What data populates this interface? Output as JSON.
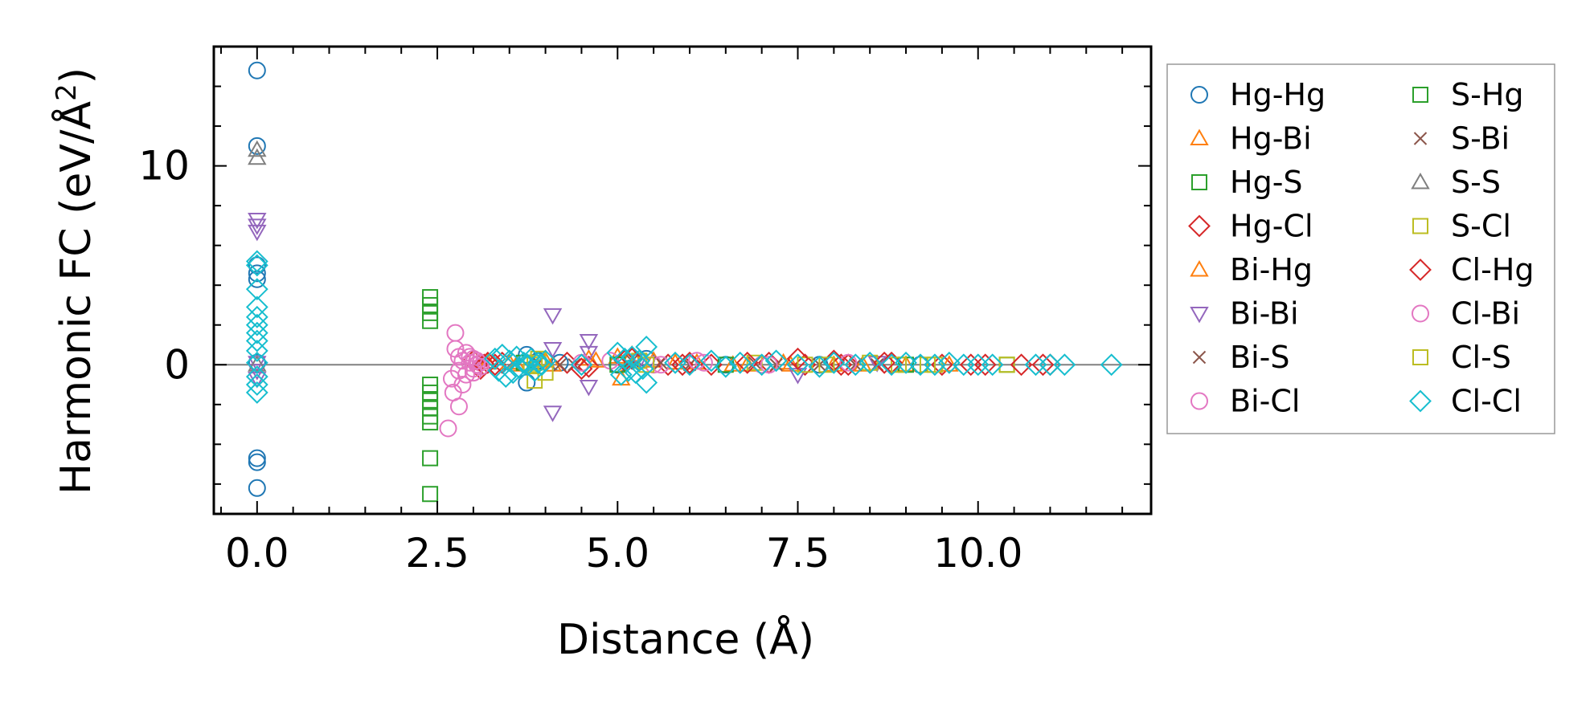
{
  "chart_data": {
    "type": "scatter",
    "title": "",
    "xlabel": "Distance (Å)",
    "ylabel_prefix": "Harmonic FC (eV/Å",
    "ylabel_sup": "2",
    "ylabel_suffix": ")",
    "xlim": [
      -0.6,
      12.4
    ],
    "ylim": [
      -7.5,
      16.0
    ],
    "xticks": [
      0.0,
      2.5,
      5.0,
      7.5,
      10.0
    ],
    "xtick_labels": [
      "0.0",
      "2.5",
      "5.0",
      "7.5",
      "10.0"
    ],
    "yticks": [
      0,
      10
    ],
    "ytick_labels": [
      "0",
      "10"
    ],
    "reference_line": 0,
    "legend_position": "right-outside",
    "series": [
      {
        "name": "Hg-Hg",
        "color": "#1f77b4",
        "marker": "circle",
        "x": [
          0.0,
          0.0,
          0.0,
          0.0,
          0.0,
          0.0,
          0.0,
          0.0,
          0.0,
          3.74,
          3.74,
          3.9,
          4.2,
          5.0,
          5.4,
          6.5,
          7.8,
          9.2
        ],
        "y": [
          14.8,
          11.0,
          4.6,
          4.3,
          5.0,
          -4.7,
          -4.9,
          -6.2,
          0.1,
          0.5,
          -0.9,
          0.2,
          0.1,
          0.0,
          0.3,
          0.0,
          0.0,
          0.0
        ]
      },
      {
        "name": "Hg-Bi",
        "color": "#ff7f0e",
        "marker": "triangle-up",
        "x": [
          3.2,
          3.6,
          4.0,
          4.6,
          5.0,
          5.05,
          5.5,
          6.1,
          6.8,
          7.4,
          8.0,
          9.0
        ],
        "y": [
          0.1,
          0.0,
          0.2,
          0.3,
          0.4,
          -0.7,
          0.2,
          0.1,
          0.0,
          0.0,
          0.0,
          0.0
        ]
      },
      {
        "name": "Hg-S",
        "color": "#2ca02c",
        "marker": "square",
        "x": [
          2.4,
          2.4,
          2.4,
          2.4,
          2.4,
          2.4,
          2.4,
          2.4,
          2.4,
          2.4,
          2.4,
          2.4
        ],
        "y": [
          3.4,
          3.0,
          2.6,
          2.2,
          -1.0,
          -1.4,
          -1.8,
          -2.2,
          -2.6,
          -2.9,
          -4.7,
          -6.5
        ]
      },
      {
        "name": "Hg-Cl",
        "color": "#d62728",
        "marker": "diamond",
        "x": [
          3.0,
          3.1,
          3.2,
          3.3,
          4.3,
          4.6,
          5.1,
          5.7,
          6.0,
          6.3,
          7.1,
          7.6,
          8.0,
          8.2,
          8.8,
          9.5,
          10.1,
          10.9
        ],
        "y": [
          0.2,
          -0.2,
          0.1,
          0.0,
          0.1,
          -0.1,
          0.2,
          0.0,
          0.1,
          0.0,
          0.1,
          0.0,
          0.2,
          0.0,
          0.1,
          0.0,
          0.0,
          0.0
        ]
      },
      {
        "name": "Bi-Hg",
        "color": "#ff7f0e",
        "marker": "triangle-up",
        "x": [
          3.5,
          4.1,
          4.7,
          5.2,
          5.8,
          6.6,
          7.3,
          8.4,
          9.6
        ],
        "y": [
          0.1,
          0.0,
          0.2,
          0.5,
          0.1,
          0.0,
          0.1,
          0.0,
          0.0
        ]
      },
      {
        "name": "Bi-Bi",
        "color": "#9467bd",
        "marker": "triangle-down",
        "x": [
          0.0,
          0.0,
          0.0,
          0.0,
          0.0,
          0.0,
          4.1,
          4.1,
          4.1,
          4.6,
          4.6,
          4.6,
          5.3,
          7.5,
          8.6
        ],
        "y": [
          7.3,
          7.0,
          6.7,
          0.1,
          -0.3,
          -0.7,
          2.5,
          0.8,
          -2.4,
          1.2,
          0.6,
          -1.1,
          0.2,
          -0.5,
          0.1
        ]
      },
      {
        "name": "Bi-S",
        "color": "#8c564b",
        "marker": "x",
        "x": [
          3.9,
          4.4,
          5.2,
          6.0,
          6.9,
          7.8,
          8.6
        ],
        "y": [
          0.1,
          0.0,
          0.2,
          0.0,
          0.1,
          0.0,
          0.0
        ]
      },
      {
        "name": "Bi-Cl",
        "color": "#e377c2",
        "marker": "circle",
        "x": [
          2.65,
          2.7,
          2.72,
          2.75,
          2.75,
          2.8,
          2.8,
          2.8,
          2.85,
          2.85,
          2.9,
          2.9,
          2.95,
          3.0,
          3.0,
          3.05,
          3.1,
          4.9,
          5.5,
          6.2,
          7.0
        ],
        "y": [
          -3.2,
          -0.7,
          -1.4,
          1.6,
          0.8,
          0.4,
          -0.3,
          -2.1,
          0.2,
          -1.0,
          0.6,
          -0.5,
          0.1,
          0.3,
          -0.2,
          0.0,
          0.1,
          0.2,
          0.0,
          0.1,
          0.0
        ]
      },
      {
        "name": "S-Hg",
        "color": "#2ca02c",
        "marker": "square",
        "x": [
          3.7,
          5.0,
          6.5,
          9.0,
          10.4
        ],
        "y": [
          0.1,
          0.0,
          0.0,
          0.0,
          0.0
        ]
      },
      {
        "name": "S-Bi",
        "color": "#8c564b",
        "marker": "x",
        "x": [
          4.2,
          5.6,
          7.2,
          8.3
        ],
        "y": [
          0.0,
          0.1,
          0.0,
          0.0
        ]
      },
      {
        "name": "S-S",
        "color": "#7f7f7f",
        "marker": "triangle-up",
        "x": [
          0.0,
          0.0,
          0.0
        ],
        "y": [
          10.8,
          10.4,
          0.0
        ]
      },
      {
        "name": "S-Cl",
        "color": "#bcbd22",
        "marker": "square",
        "x": [
          3.8,
          3.85,
          3.9,
          4.0,
          5.3,
          6.9,
          7.6,
          8.5,
          8.9,
          9.3,
          10.4
        ],
        "y": [
          0.0,
          -0.8,
          0.3,
          -0.4,
          0.2,
          0.1,
          0.0,
          0.1,
          0.0,
          0.0,
          0.0
        ]
      },
      {
        "name": "Cl-Hg",
        "color": "#d62728",
        "marker": "diamond",
        "x": [
          3.15,
          3.4,
          4.5,
          5.2,
          5.9,
          6.8,
          7.5,
          8.1,
          8.7,
          9.9,
          10.6,
          11.0
        ],
        "y": [
          0.0,
          0.1,
          -0.2,
          0.3,
          0.0,
          0.1,
          0.3,
          0.0,
          0.1,
          0.0,
          0.0,
          0.0
        ]
      },
      {
        "name": "Cl-Bi",
        "color": "#e377c2",
        "marker": "circle",
        "x": [
          2.95,
          3.0,
          3.05,
          3.1,
          4.5,
          5.6,
          6.1,
          7.1,
          8.2
        ],
        "y": [
          0.4,
          -0.4,
          0.2,
          -0.1,
          0.1,
          0.0,
          0.2,
          0.0,
          0.1
        ]
      },
      {
        "name": "Cl-S",
        "color": "#bcbd22",
        "marker": "square",
        "x": [
          3.85,
          5.4,
          7.9,
          9.4
        ],
        "y": [
          0.1,
          0.0,
          0.0,
          0.0
        ]
      },
      {
        "name": "Cl-Cl",
        "color": "#17becf",
        "marker": "diamond",
        "x": [
          0.0,
          0.0,
          0.0,
          0.0,
          0.0,
          0.0,
          0.0,
          0.0,
          0.0,
          0.0,
          0.0,
          0.0,
          0.0,
          3.3,
          3.35,
          3.4,
          3.45,
          3.5,
          3.55,
          3.6,
          3.65,
          3.7,
          3.75,
          3.8,
          3.85,
          3.9,
          3.95,
          4.0,
          4.5,
          5.0,
          5.05,
          5.1,
          5.15,
          5.2,
          5.25,
          5.3,
          5.35,
          5.4,
          5.4,
          5.8,
          6.0,
          6.3,
          6.5,
          6.7,
          7.0,
          7.2,
          7.5,
          7.8,
          8.0,
          8.3,
          8.5,
          8.8,
          9.0,
          9.2,
          9.4,
          9.6,
          9.8,
          10.0,
          10.2,
          10.8,
          11.0,
          11.2,
          11.85
        ],
        "y": [
          5.2,
          5.0,
          3.8,
          2.9,
          2.4,
          2.0,
          1.6,
          1.2,
          0.7,
          0.1,
          -0.6,
          -1.0,
          -1.4,
          0.3,
          -0.3,
          0.5,
          -0.6,
          0.2,
          -0.4,
          0.4,
          -0.2,
          0.1,
          0.0,
          0.3,
          -0.3,
          0.1,
          0.0,
          0.2,
          0.0,
          0.6,
          -0.5,
          0.3,
          -0.3,
          0.4,
          -0.4,
          0.2,
          -0.2,
          0.9,
          -0.9,
          0.1,
          0.0,
          0.2,
          -0.1,
          0.1,
          0.0,
          0.2,
          0.0,
          -0.1,
          0.1,
          0.0,
          0.1,
          0.0,
          0.1,
          0.0,
          0.0,
          0.1,
          0.0,
          0.0,
          0.0,
          0.0,
          0.0,
          0.0,
          0.0
        ]
      }
    ]
  }
}
